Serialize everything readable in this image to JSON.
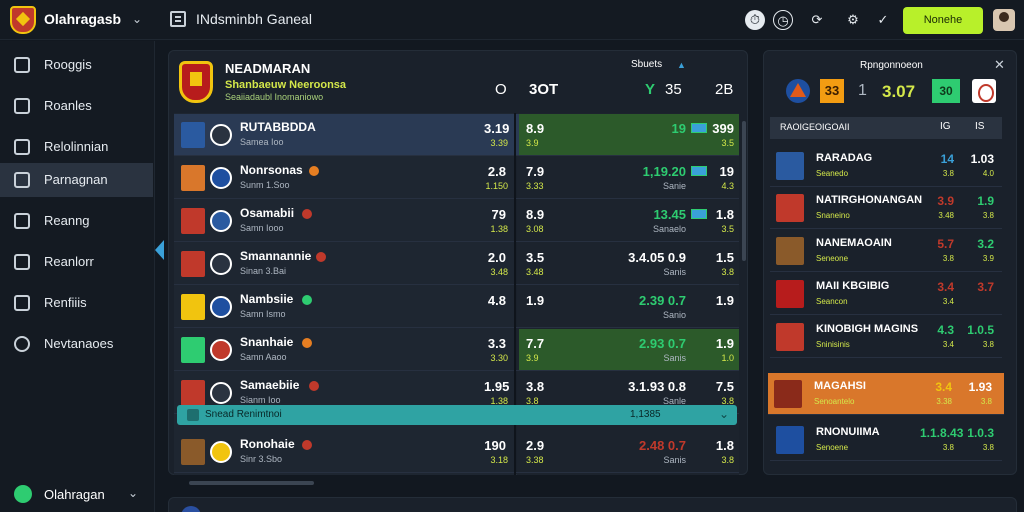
{
  "topbar": {
    "app_name": "Olahragasb",
    "page_title": "INdsminbh Ganeal",
    "primary_button": "Nonehe",
    "icons": [
      "clock-icon",
      "timer-icon",
      "refresh-icon",
      "gear-icon",
      "check-icon"
    ]
  },
  "sidebar": {
    "items": [
      {
        "label": "Rooggis",
        "icon": "copy-icon"
      },
      {
        "label": "Roanles",
        "icon": "home-icon"
      },
      {
        "label": "Relolinnian",
        "icon": "document-icon"
      },
      {
        "label": "Parnagnan",
        "icon": "monitor-icon",
        "active": true
      },
      {
        "label": "Reanng",
        "icon": "file-icon"
      },
      {
        "label": "Reanlorr",
        "icon": "bug-icon"
      },
      {
        "label": "Renfiiis",
        "icon": "chart-icon"
      },
      {
        "label": "Nevtanaoes",
        "icon": "search-icon"
      }
    ],
    "footer_label": "Olahragan"
  },
  "main": {
    "title": "NEADMARAN",
    "subtitle": "Shanbaeuw Neeroonsa",
    "subtitle2": "Seaiiadaubl Inomaniowo",
    "header": {
      "col_a": "O",
      "col_b": "3OT",
      "currency": "Sbuets",
      "col_c_prefix": "Y",
      "col_c": "35",
      "col_d": "2B"
    },
    "rows": [
      {
        "name": "RUTABBDDA",
        "sub": "Samea Ioo",
        "v1": "3.19",
        "v1b": "3.39",
        "odd": "8.9",
        "oddb": "3.9",
        "v2": "19",
        "v2_color": "#2ecc71",
        "v2b": "",
        "v3": "399",
        "v3b": "3.5",
        "selected": true,
        "green": true,
        "flag": "#2a5aa0",
        "badge": "#2a3340",
        "dot": ""
      },
      {
        "name": "Nonrsonas",
        "sub": "Sunm 1.Soo",
        "v1": "2.8",
        "v1b": "1.150",
        "odd": "7.9",
        "oddb": "3.33",
        "v2": "1,19.20",
        "v2_color": "#2ecc71",
        "v2b": "Sanie",
        "v3": "19",
        "v3b": "4.3",
        "selected": false,
        "green": false,
        "flag": "#d9772b",
        "badge": "#1e4fa0",
        "dot": "#e67e22"
      },
      {
        "name": "Osamabii",
        "sub": "Samn Iooo",
        "v1": "79",
        "v1b": "1.38",
        "odd": "8.9",
        "oddb": "3.08",
        "v2": "13.45",
        "v2_color": "#2ecc71",
        "v2b": "Sanaelo",
        "v3": "1.8",
        "v3b": "3.5",
        "selected": false,
        "green": false,
        "flag": "#c0392b",
        "badge": "#2a5aa0",
        "dot": "#c0392b"
      },
      {
        "name": "Smannannie",
        "sub": "Sinan 3.Bai",
        "v1": "2.0",
        "v1b": "3.48",
        "odd": "3.5",
        "oddb": "3.48",
        "v2": "3.4.05 0.9",
        "v2_color": "#fff",
        "v2b": "Sanis",
        "v3": "1.5",
        "v3b": "3.8",
        "selected": false,
        "green": false,
        "flag": "#c0392b",
        "badge": "#2a3340",
        "dot": "#c0392b"
      },
      {
        "name": "Nambsiie",
        "sub": "Samn Ismo",
        "v1": "4.8",
        "v1b": "",
        "odd": "1.9",
        "oddb": "",
        "v2": "2.39 0.7",
        "v2_color": "#2ecc71",
        "v2b": "Sanio",
        "v3": "1.9",
        "v3b": "",
        "selected": false,
        "green": false,
        "flag": "#f1c40f",
        "badge": "#1e4fa0",
        "dot": "#2ecc71"
      },
      {
        "name": "Snanhaie",
        "sub": "Samn Aaoo",
        "v1": "3.3",
        "v1b": "3.30",
        "odd": "7.7",
        "oddb": "3.9",
        "v2": "2.93 0.7",
        "v2_color": "#2ecc71",
        "v2b": "Sanis",
        "v3": "1.9",
        "v3b": "1.0",
        "selected": false,
        "green": true,
        "flag": "#2ecc71",
        "badge": "#c0392b",
        "dot": "#e67e22"
      },
      {
        "name": "Samaebiie",
        "sub": "Sianm Ioo",
        "v1": "1.95",
        "v1b": "1.38",
        "odd": "3.8",
        "oddb": "3.8",
        "v2": "3.1.93 0.8",
        "v2_color": "#fff",
        "v2b": "Sanle",
        "v3": "7.5",
        "v3b": "3.8",
        "selected": false,
        "green": false,
        "flag": "#c0392b",
        "badge": "#2a3340",
        "dot": "#c0392b"
      },
      {
        "name": "Ronohaie",
        "sub": "Sinr 3.Sbo",
        "v1": "190",
        "v1b": "3.18",
        "odd": "2.9",
        "oddb": "3.38",
        "v2": "2.48 0.7",
        "v2_color": "#c0392b",
        "v2b": "Sanis",
        "v3": "1.8",
        "v3b": "3.8",
        "selected": false,
        "green": false,
        "flag": "#8a5a2a",
        "badge": "#f1c40f",
        "dot": "#c0392b"
      }
    ],
    "infobar": {
      "label": "Snead Renimtnoi",
      "right": "1,1385"
    }
  },
  "right_panel": {
    "title": "Rpngonnoeon",
    "score": {
      "left": "33",
      "mid": "1",
      "center": "3.07",
      "right": "30"
    },
    "header": {
      "label": "RAOIGEOIGOAII",
      "c1": "IG",
      "c2": "IS"
    },
    "rows": [
      {
        "name": "RARADAG",
        "sub": "Seanedo",
        "a": "14",
        "a_color": "#3aa0d8",
        "ab": "3.8",
        "b": "1.03",
        "b_color": "#fff",
        "bb": "4.0",
        "img": "#2a5aa0",
        "selected": false
      },
      {
        "name": "NATIRGHONANGAN",
        "sub": "Snaneino",
        "a": "3.9",
        "a_color": "#c0392b",
        "ab": "3.48",
        "b": "1.9",
        "b_color": "#2ecc71",
        "bb": "3.8",
        "img": "#c0392b",
        "selected": false
      },
      {
        "name": "NANEMAOAIN",
        "sub": "Seneone",
        "a": "5.7",
        "a_color": "#c0392b",
        "ab": "3.8",
        "b": "3.2",
        "b_color": "#2ecc71",
        "bb": "3.9",
        "img": "#8a5a2a",
        "selected": false
      },
      {
        "name": "MAII KBGIBIG",
        "sub": "Seancon",
        "a": "3.4",
        "a_color": "#c0392b",
        "ab": "3.4",
        "b": "3.7",
        "b_color": "#c0392b",
        "bb": "",
        "img": "#b71c1c",
        "selected": false
      },
      {
        "name": "KINOBIGH MAGINS",
        "sub": "Sninisinis",
        "a": "4.3",
        "a_color": "#2ecc71",
        "ab": "3.4",
        "b": "1.0.5",
        "b_color": "#2ecc71",
        "bb": "3.8",
        "img": "#c0392b",
        "selected": false
      },
      {
        "name": "MAGAHSI",
        "sub": "Senoantelo",
        "a": "3.4",
        "a_color": "#f1c40f",
        "ab": "3.38",
        "b": "1.93",
        "b_color": "#fff",
        "bb": "3.8",
        "img": "#8a2a1a",
        "selected": true
      },
      {
        "name": "RNONUIIMA",
        "sub": "Senoene",
        "a": "1.1.8.43",
        "a_color": "#2ecc71",
        "ab": "3.8",
        "b": "1.0.3",
        "b_color": "#2ecc71",
        "bb": "3.8",
        "img": "#1e4fa0",
        "selected": false
      }
    ]
  },
  "colors": {
    "accent": "#b8f02a",
    "teal": "#2fa3a3",
    "orange": "#d9772b",
    "green": "#2ecc71",
    "red": "#c0392b"
  }
}
